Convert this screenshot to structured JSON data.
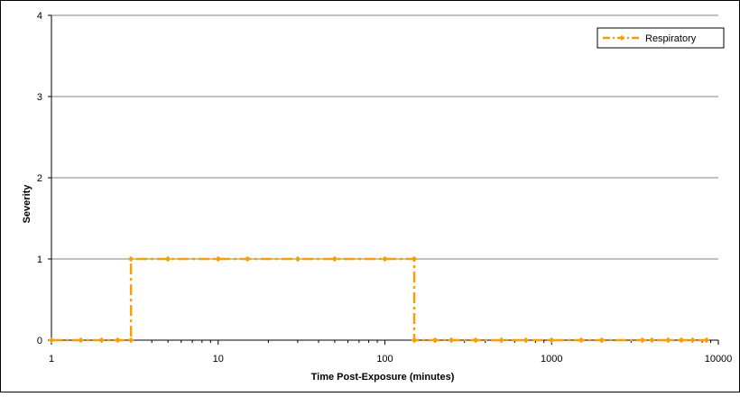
{
  "chart_data": {
    "type": "line",
    "title": "",
    "xlabel": "Time Post-Exposure (minutes)",
    "ylabel": "Severity",
    "x_scale": "log",
    "xlim": [
      1,
      10000
    ],
    "ylim": [
      0,
      4
    ],
    "x_ticks": [
      1,
      10,
      100,
      1000,
      10000
    ],
    "x_tick_labels": [
      "1",
      "10",
      "100",
      "1000",
      "10000"
    ],
    "y_ticks": [
      0,
      1,
      2,
      3,
      4
    ],
    "y_tick_labels": [
      "0",
      "1",
      "2",
      "3",
      "4"
    ],
    "grid": "horizontal",
    "legend_position": "top-right",
    "series": [
      {
        "name": "Respiratory",
        "color": "#f5a00a",
        "line_style": "dash-dot",
        "marker": "diamond",
        "x": [
          1,
          1.5,
          2,
          2.5,
          3,
          3,
          5,
          10,
          15,
          30,
          50,
          100,
          150,
          150,
          200,
          250,
          350,
          500,
          700,
          1000,
          1500,
          2000,
          3500,
          4000,
          5000,
          6000,
          7000,
          8500
        ],
        "y": [
          0,
          0,
          0,
          0,
          0,
          1,
          1,
          1,
          1,
          1,
          1,
          1,
          1,
          0,
          0,
          0,
          0,
          0,
          0,
          0,
          0,
          0,
          0,
          0,
          0,
          0,
          0,
          0
        ]
      }
    ]
  }
}
